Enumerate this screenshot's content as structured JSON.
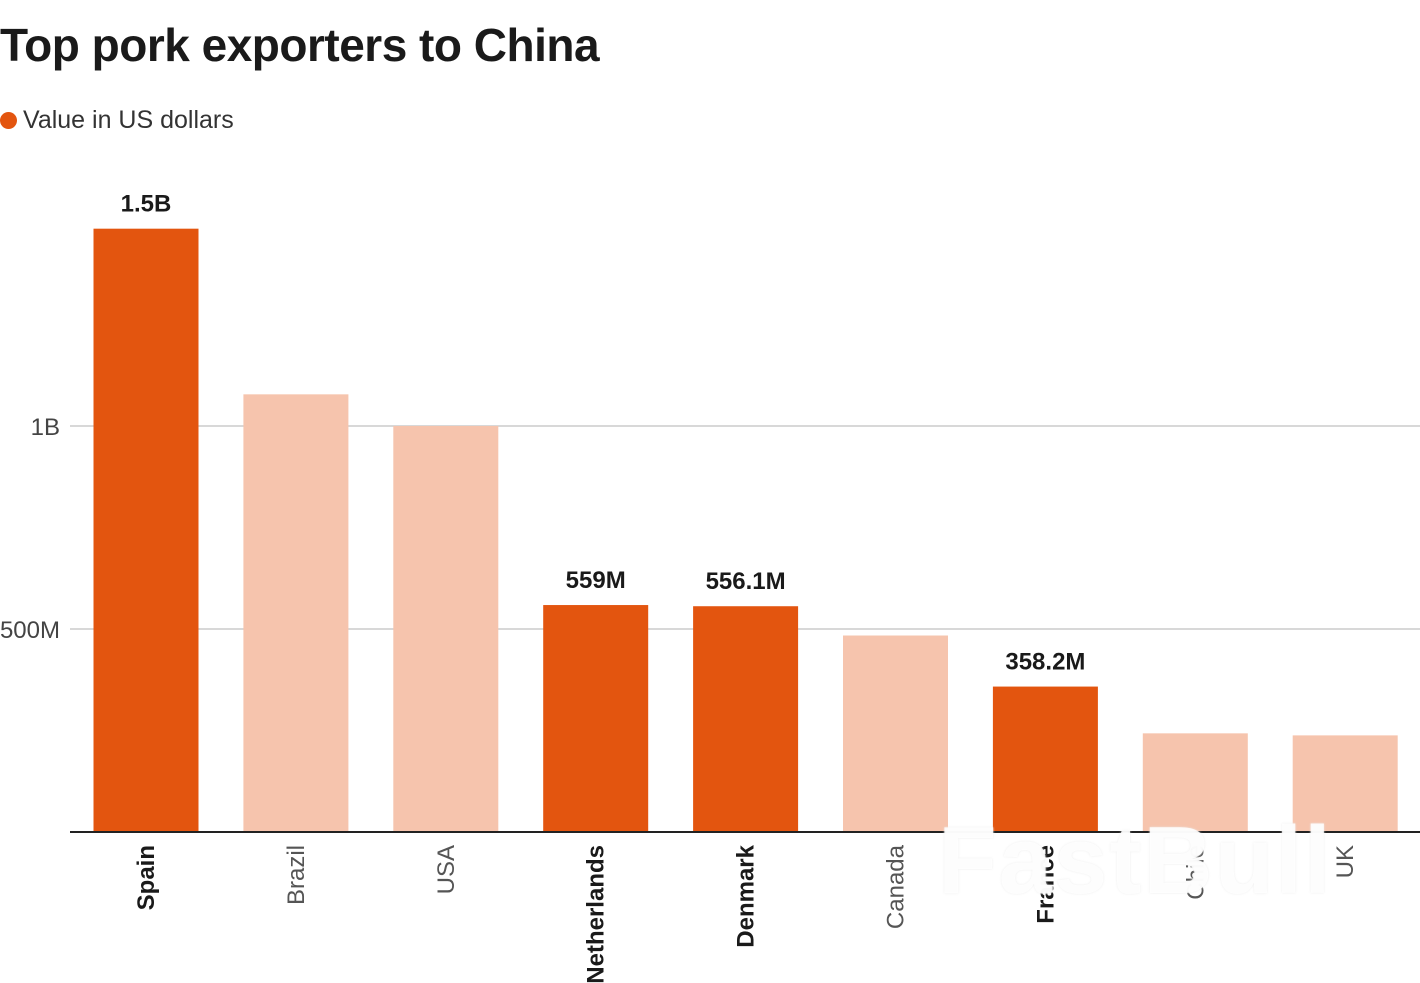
{
  "title": "Top pork exporters to China",
  "legend": {
    "label": "Value in US dollars",
    "color": "#e3550f"
  },
  "watermark": "FastBull",
  "chart_data": {
    "type": "bar",
    "title": "Top pork exporters to China",
    "categories": [
      "Spain",
      "Brazil",
      "USA",
      "Netherlands",
      "Denmark",
      "Canada",
      "France",
      "Chile",
      "UK"
    ],
    "series": [
      {
        "name": "Value in US dollars",
        "values": [
          1486000000,
          1078000000,
          1000000000,
          559000000,
          556100000,
          484000000,
          358200000,
          243000000,
          238000000
        ]
      }
    ],
    "highlighted": [
      true,
      false,
      false,
      true,
      true,
      false,
      true,
      false,
      false
    ],
    "data_labels": [
      "1.5B",
      "",
      "",
      "559M",
      "556.1M",
      "",
      "358.2M",
      "",
      ""
    ],
    "yticks": [
      {
        "value": 500000000,
        "label": "500M"
      },
      {
        "value": 1000000000,
        "label": "1B"
      }
    ],
    "ylim": [
      0,
      1500000000
    ],
    "grid": true,
    "xlabel": "",
    "ylabel": "",
    "colors": {
      "highlight": "#e3550f",
      "muted": "#f6c4ad",
      "grid": "#cccccc",
      "axis": "#222222"
    }
  }
}
